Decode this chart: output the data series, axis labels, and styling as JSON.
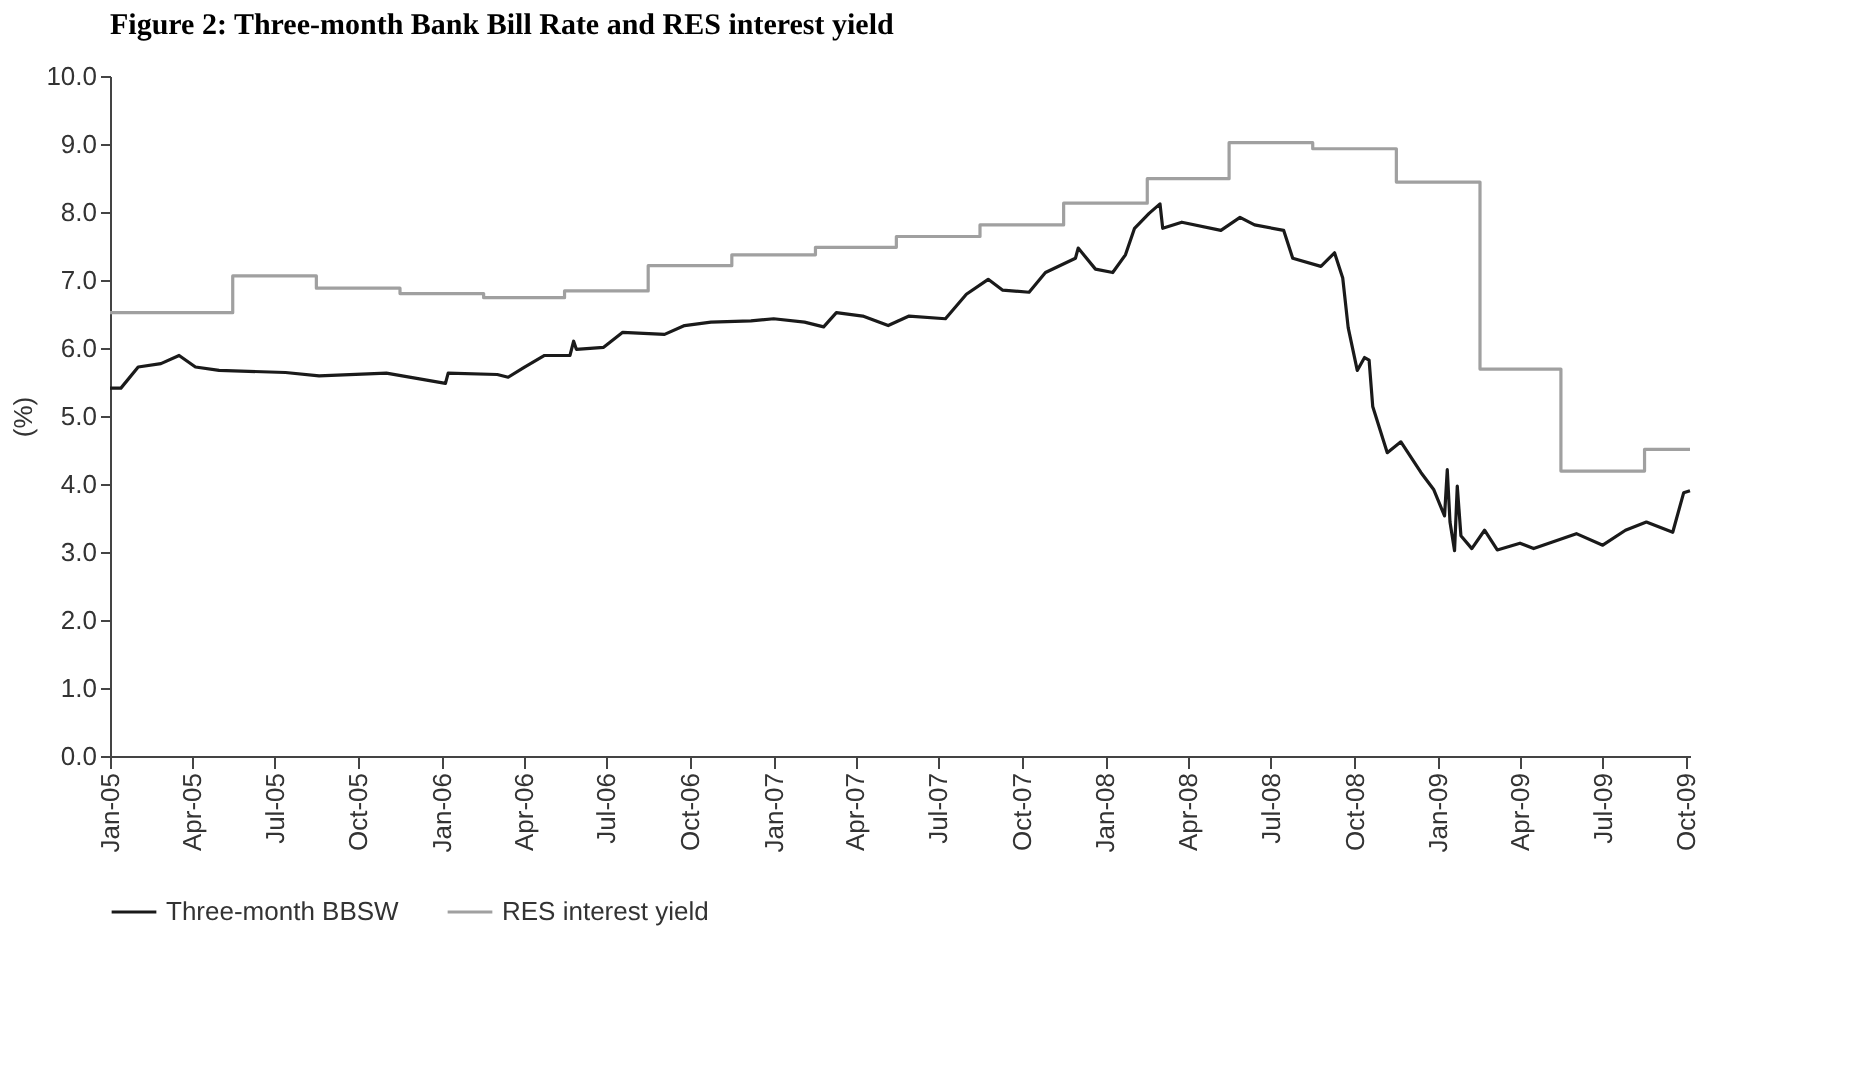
{
  "chart_data": {
    "type": "line",
    "title": "Figure 2: Three-month Bank Bill Rate and RES interest yield",
    "ylabel": "(%)",
    "xlim": [
      "2005-01-01",
      "2009-10-05"
    ],
    "xticks": [
      {
        "value": "2005-01-01",
        "label": "Jan-05"
      },
      {
        "value": "2005-04-01",
        "label": "Apr-05"
      },
      {
        "value": "2005-07-01",
        "label": "Jul-05"
      },
      {
        "value": "2005-10-01",
        "label": "Oct-05"
      },
      {
        "value": "2006-01-01",
        "label": "Jan-06"
      },
      {
        "value": "2006-04-01",
        "label": "Apr-06"
      },
      {
        "value": "2006-07-01",
        "label": "Jul-06"
      },
      {
        "value": "2006-10-01",
        "label": "Oct-06"
      },
      {
        "value": "2007-01-01",
        "label": "Jan-07"
      },
      {
        "value": "2007-04-01",
        "label": "Apr-07"
      },
      {
        "value": "2007-07-01",
        "label": "Jul-07"
      },
      {
        "value": "2007-10-01",
        "label": "Oct-07"
      },
      {
        "value": "2008-01-01",
        "label": "Jan-08"
      },
      {
        "value": "2008-04-01",
        "label": "Apr-08"
      },
      {
        "value": "2008-07-01",
        "label": "Jul-08"
      },
      {
        "value": "2008-10-01",
        "label": "Oct-08"
      },
      {
        "value": "2009-01-01",
        "label": "Jan-09"
      },
      {
        "value": "2009-04-01",
        "label": "Apr-09"
      },
      {
        "value": "2009-07-01",
        "label": "Jul-09"
      },
      {
        "value": "2009-10-01",
        "label": "Oct-09"
      }
    ],
    "ylim": [
      0,
      10
    ],
    "yticks": [
      {
        "value": 0,
        "label": "0.0"
      },
      {
        "value": 1,
        "label": "1.0"
      },
      {
        "value": 2,
        "label": "2.0"
      },
      {
        "value": 3,
        "label": "3.0"
      },
      {
        "value": 4,
        "label": "4.0"
      },
      {
        "value": 5,
        "label": "5.0"
      },
      {
        "value": 6,
        "label": "6.0"
      },
      {
        "value": 7,
        "label": "7.0"
      },
      {
        "value": 8,
        "label": "8.0"
      },
      {
        "value": 9,
        "label": "9.0"
      },
      {
        "value": 10,
        "label": "10.0"
      }
    ],
    "grid": false,
    "legend": "bottom",
    "marker": "none",
    "line_style": "solid",
    "series": [
      {
        "name": "Three-month BBSW",
        "type": "line",
        "color": "#1a1a1a",
        "x": [
          "2005-01-01",
          "2005-01-13",
          "2005-02-01",
          "2005-02-26",
          "2005-03-18",
          "2005-04-05",
          "2005-05-01",
          "2005-07-13",
          "2005-08-19",
          "2005-11-01",
          "2006-01-05",
          "2006-01-08",
          "2006-03-03",
          "2006-03-15",
          "2006-04-02",
          "2006-04-24",
          "2006-05-22",
          "2006-05-26",
          "2006-05-29",
          "2006-06-28",
          "2006-07-19",
          "2006-09-03",
          "2006-09-25",
          "2006-10-24",
          "2006-12-07",
          "2007-01-01",
          "2007-02-04",
          "2007-02-25",
          "2007-03-11",
          "2007-04-09",
          "2007-05-07",
          "2007-05-30",
          "2007-07-09",
          "2007-08-01",
          "2007-08-25",
          "2007-09-10",
          "2007-10-09",
          "2007-10-27",
          "2007-11-29",
          "2007-12-02",
          "2007-12-21",
          "2008-01-09",
          "2008-01-23",
          "2008-02-02",
          "2008-02-18",
          "2008-03-01",
          "2008-03-04",
          "2008-03-25",
          "2008-05-07",
          "2008-05-28",
          "2008-06-13",
          "2008-07-15",
          "2008-07-25",
          "2008-08-25",
          "2008-09-09",
          "2008-09-18",
          "2008-09-24",
          "2008-10-04",
          "2008-10-12",
          "2008-10-17",
          "2008-10-21",
          "2008-11-06",
          "2008-11-21",
          "2008-12-13",
          "2008-12-27",
          "2009-01-08",
          "2009-01-11",
          "2009-01-14",
          "2009-01-19",
          "2009-01-22",
          "2009-01-26",
          "2009-02-07",
          "2009-02-21",
          "2009-03-07",
          "2009-04-01",
          "2009-04-16",
          "2009-06-02",
          "2009-07-01",
          "2009-07-26",
          "2009-08-18",
          "2009-09-16",
          "2009-09-28",
          "2009-10-05"
        ],
        "values": [
          5.41,
          5.41,
          5.72,
          5.77,
          5.89,
          5.72,
          5.67,
          5.64,
          5.59,
          5.63,
          5.48,
          5.63,
          5.61,
          5.57,
          5.72,
          5.89,
          5.89,
          6.1,
          5.98,
          6.01,
          6.23,
          6.2,
          6.33,
          6.38,
          6.4,
          6.43,
          6.38,
          6.31,
          6.52,
          6.47,
          6.33,
          6.47,
          6.43,
          6.79,
          7.01,
          6.85,
          6.82,
          7.11,
          7.32,
          7.47,
          7.16,
          7.11,
          7.37,
          7.76,
          7.98,
          8.12,
          7.76,
          7.85,
          7.73,
          7.92,
          7.81,
          7.73,
          7.32,
          7.2,
          7.4,
          7.03,
          6.3,
          5.67,
          5.86,
          5.82,
          5.14,
          4.46,
          4.62,
          4.17,
          3.92,
          3.53,
          4.21,
          3.44,
          3.02,
          3.97,
          3.24,
          3.05,
          3.32,
          3.03,
          3.13,
          3.05,
          3.27,
          3.1,
          3.32,
          3.44,
          3.29,
          3.87,
          3.9
        ]
      },
      {
        "name": "RES interest yield",
        "type": "step",
        "color": "#a0a0a0",
        "x": [
          "2005-01-01",
          "2005-05-16",
          "2005-08-16",
          "2005-11-16",
          "2006-02-16",
          "2006-05-16",
          "2006-08-16",
          "2006-11-16",
          "2007-02-16",
          "2007-05-16",
          "2007-08-16",
          "2007-11-16",
          "2008-02-16",
          "2008-05-16",
          "2008-08-16",
          "2008-11-16",
          "2009-02-16",
          "2009-05-16",
          "2009-08-16",
          "2009-10-05"
        ],
        "values": [
          6.52,
          7.06,
          6.88,
          6.8,
          6.74,
          6.84,
          7.21,
          7.37,
          7.48,
          7.64,
          7.81,
          8.13,
          8.49,
          9.02,
          8.93,
          8.44,
          5.69,
          4.19,
          4.51,
          4.51
        ]
      }
    ]
  }
}
